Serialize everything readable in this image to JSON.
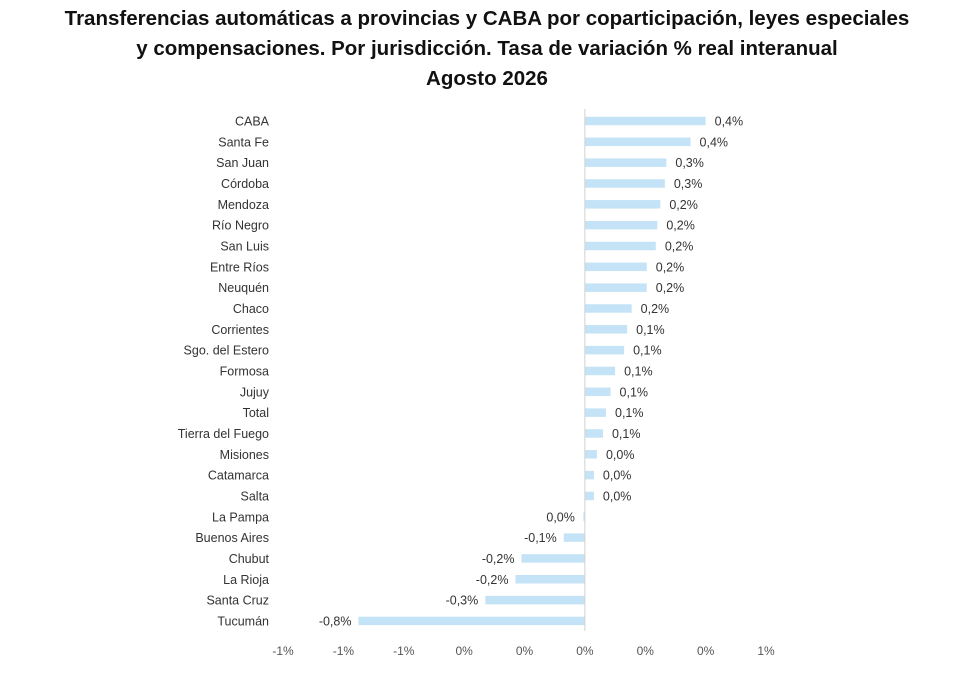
{
  "chart_data": {
    "type": "bar",
    "orientation": "horizontal",
    "title": [
      "Transferencias automáticas a provincias y CABA por coparticipación, leyes especiales",
      "y compensaciones. Por jurisdicción. Tasa de variación % real interanual",
      "Agosto 2026"
    ],
    "categories": [
      "CABA",
      "Santa Fe",
      "San Juan",
      "Córdoba",
      "Mendoza",
      "Río Negro",
      "San Luis",
      "Entre Ríos",
      "Neuquén",
      "Chaco",
      "Corrientes",
      "Sgo. del Estero",
      "Formosa",
      "Jujuy",
      "Total",
      "Tierra del Fuego",
      "Misiones",
      "Catamarca",
      "Salta",
      "La Pampa",
      "Buenos Aires",
      "Chubut",
      "La Rioja",
      "Santa Cruz",
      "Tucumán"
    ],
    "values": [
      0.4,
      0.35,
      0.27,
      0.265,
      0.25,
      0.24,
      0.235,
      0.205,
      0.205,
      0.155,
      0.14,
      0.13,
      0.1,
      0.085,
      0.07,
      0.06,
      0.04,
      0.03,
      0.03,
      -0.005,
      -0.07,
      -0.21,
      -0.23,
      -0.33,
      -0.75
    ],
    "value_labels": [
      "0,4%",
      "0,4%",
      "0,3%",
      "0,3%",
      "0,2%",
      "0,2%",
      "0,2%",
      "0,2%",
      "0,2%",
      "0,2%",
      "0,1%",
      "0,1%",
      "0,1%",
      "0,1%",
      "0,1%",
      "0,1%",
      "0,0%",
      "0,0%",
      "0,0%",
      "0,0%",
      "-0,1%",
      "-0,2%",
      "-0,2%",
      "-0,3%",
      "-0,8%"
    ],
    "xlim": [
      -1.0,
      0.6
    ],
    "xticks": [
      -1.0,
      -0.8,
      -0.6,
      -0.4,
      -0.2,
      0.0,
      0.2,
      0.4,
      0.6
    ],
    "xtick_labels": [
      "-1%",
      "-1%",
      "-1%",
      "0%",
      "0%",
      "0%",
      "0%",
      "0%",
      "1%"
    ],
    "bar_color": "#c5e3f6",
    "axis_color": "#d0d0d0",
    "grid": false,
    "legend": "none"
  }
}
